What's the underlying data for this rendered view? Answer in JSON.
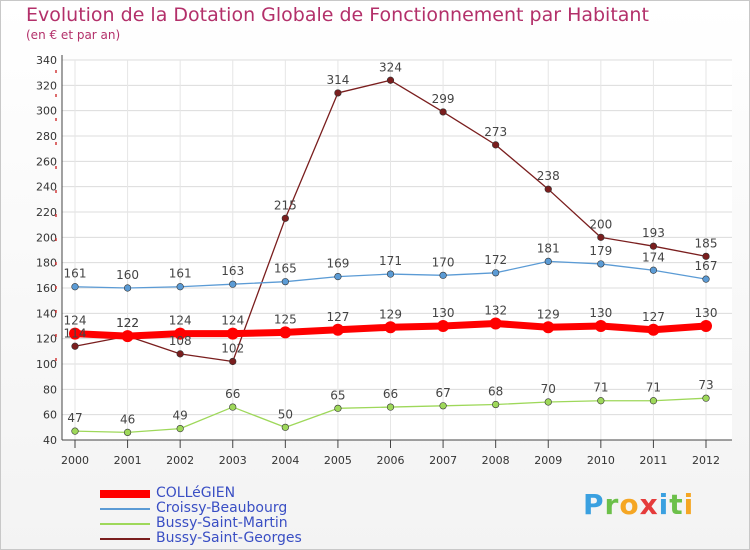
{
  "chart_data": {
    "type": "line",
    "title": "Evolution de la Dotation Globale de Fonctionnement par Habitant",
    "subtitle": "(en € et par an)",
    "categories": [
      "2000",
      "2001",
      "2002",
      "2003",
      "2004",
      "2005",
      "2006",
      "2007",
      "2008",
      "2009",
      "2010",
      "2011",
      "2012"
    ],
    "yticks": [
      40,
      60,
      80,
      100,
      120,
      140,
      160,
      180,
      200,
      220,
      240,
      260,
      280,
      300,
      320,
      340
    ],
    "ylim": [
      40,
      340
    ],
    "legend_position": "bottom-left",
    "series": [
      {
        "name": "COLLéGIEN",
        "color": "#ff0000",
        "values": [
          124,
          122,
          124,
          124,
          125,
          127,
          129,
          130,
          132,
          129,
          130,
          127,
          130
        ]
      },
      {
        "name": "Croissy-Beaubourg",
        "color": "#5b9bd5",
        "values": [
          161,
          160,
          161,
          163,
          165,
          169,
          171,
          170,
          172,
          181,
          179,
          174,
          167
        ]
      },
      {
        "name": "Bussy-Saint-Martin",
        "color": "#9ed85a",
        "values": [
          47,
          46,
          49,
          66,
          50,
          65,
          66,
          67,
          68,
          70,
          71,
          71,
          73
        ]
      },
      {
        "name": "Bussy-Saint-Georges",
        "color": "#7a1e1e",
        "values": [
          114,
          122,
          108,
          102,
          215,
          314,
          324,
          299,
          273,
          238,
          200,
          193,
          185
        ]
      }
    ]
  },
  "logo": {
    "letters": [
      "P",
      "r",
      "o",
      "x",
      "i",
      "t",
      "i"
    ],
    "colors": [
      "#3aa0e0",
      "#6cc04a",
      "#f5a623",
      "#e53b3b",
      "#3aa0e0",
      "#6cc04a",
      "#f5a623"
    ]
  }
}
